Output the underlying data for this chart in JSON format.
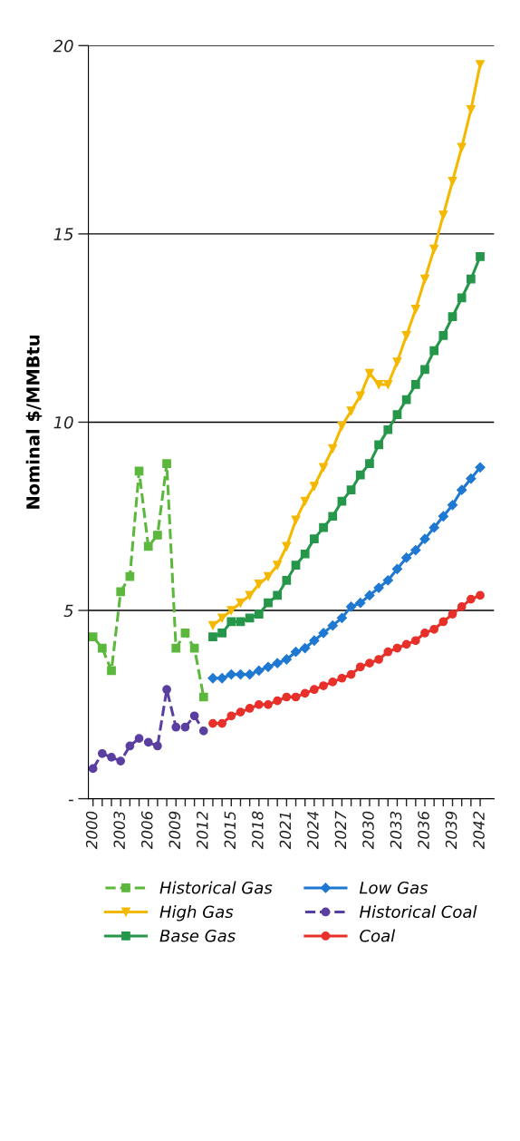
{
  "chart_data": {
    "type": "line",
    "ylabel": "Nominal $/MMBtu",
    "xlim": [
      1999.5,
      2043.5
    ],
    "xticks": [
      {
        "value": 2000,
        "label": "2000"
      },
      {
        "value": 2001,
        "label": null
      },
      {
        "value": 2002,
        "label": null
      },
      {
        "value": 2003,
        "label": "2003"
      },
      {
        "value": 2004,
        "label": null
      },
      {
        "value": 2005,
        "label": null
      },
      {
        "value": 2006,
        "label": "2006"
      },
      {
        "value": 2007,
        "label": null
      },
      {
        "value": 2008,
        "label": null
      },
      {
        "value": 2009,
        "label": "2009"
      },
      {
        "value": 2010,
        "label": null
      },
      {
        "value": 2011,
        "label": null
      },
      {
        "value": 2012,
        "label": "2012"
      },
      {
        "value": 2013,
        "label": null
      },
      {
        "value": 2014,
        "label": null
      },
      {
        "value": 2015,
        "label": "2015"
      },
      {
        "value": 2016,
        "label": null
      },
      {
        "value": 2017,
        "label": null
      },
      {
        "value": 2018,
        "label": "2018"
      },
      {
        "value": 2019,
        "label": null
      },
      {
        "value": 2020,
        "label": null
      },
      {
        "value": 2021,
        "label": "2021"
      },
      {
        "value": 2022,
        "label": null
      },
      {
        "value": 2023,
        "label": null
      },
      {
        "value": 2024,
        "label": "2024"
      },
      {
        "value": 2025,
        "label": null
      },
      {
        "value": 2026,
        "label": null
      },
      {
        "value": 2027,
        "label": "2027"
      },
      {
        "value": 2028,
        "label": null
      },
      {
        "value": 2029,
        "label": null
      },
      {
        "value": 2030,
        "label": "2030"
      },
      {
        "value": 2031,
        "label": null
      },
      {
        "value": 2032,
        "label": null
      },
      {
        "value": 2033,
        "label": "2033"
      },
      {
        "value": 2034,
        "label": null
      },
      {
        "value": 2035,
        "label": null
      },
      {
        "value": 2036,
        "label": "2036"
      },
      {
        "value": 2037,
        "label": null
      },
      {
        "value": 2038,
        "label": null
      },
      {
        "value": 2039,
        "label": "2039"
      },
      {
        "value": 2040,
        "label": null
      },
      {
        "value": 2041,
        "label": null
      },
      {
        "value": 2042,
        "label": "2042"
      }
    ],
    "ylim": [
      0,
      20
    ],
    "yticks": [
      {
        "value": 0,
        "label": "-"
      },
      5,
      10,
      15,
      20
    ],
    "grid": "y",
    "legend": "bottom",
    "series": [
      {
        "name": "Historical Gas",
        "color": "#5cb83c",
        "marker": "square",
        "line_style": "dashed",
        "x": [
          2000,
          2001,
          2002,
          2003,
          2004,
          2005,
          2006,
          2007,
          2008,
          2009,
          2010,
          2011,
          2012
        ],
        "values": [
          4.3,
          4.0,
          3.4,
          5.5,
          5.9,
          8.7,
          6.7,
          7.0,
          8.9,
          4.0,
          4.4,
          4.0,
          2.7
        ]
      },
      {
        "name": "High Gas",
        "color": "#f5b800",
        "marker": "triangle",
        "line_style": "solid",
        "x": [
          2013,
          2014,
          2015,
          2016,
          2017,
          2018,
          2019,
          2020,
          2021,
          2022,
          2023,
          2024,
          2025,
          2026,
          2027,
          2028,
          2029,
          2030,
          2031,
          2032,
          2033,
          2034,
          2035,
          2036,
          2037,
          2038,
          2039,
          2040,
          2041,
          2042
        ],
        "values": [
          4.6,
          4.8,
          5.0,
          5.2,
          5.4,
          5.7,
          5.9,
          6.2,
          6.7,
          7.4,
          7.9,
          8.3,
          8.8,
          9.3,
          9.9,
          10.3,
          10.7,
          11.3,
          11.0,
          11.0,
          11.6,
          12.3,
          13.0,
          13.8,
          14.6,
          15.5,
          16.4,
          17.3,
          18.3,
          19.5
        ]
      },
      {
        "name": "Base Gas",
        "color": "#25964a",
        "marker": "square",
        "line_style": "solid",
        "x": [
          2013,
          2014,
          2015,
          2016,
          2017,
          2018,
          2019,
          2020,
          2021,
          2022,
          2023,
          2024,
          2025,
          2026,
          2027,
          2028,
          2029,
          2030,
          2031,
          2032,
          2033,
          2034,
          2035,
          2036,
          2037,
          2038,
          2039,
          2040,
          2041,
          2042
        ],
        "values": [
          4.3,
          4.4,
          4.7,
          4.7,
          4.8,
          4.9,
          5.2,
          5.4,
          5.8,
          6.2,
          6.5,
          6.9,
          7.2,
          7.5,
          7.9,
          8.2,
          8.6,
          8.9,
          9.4,
          9.8,
          10.2,
          10.6,
          11.0,
          11.4,
          11.9,
          12.3,
          12.8,
          13.3,
          13.8,
          14.4
        ]
      },
      {
        "name": "Low Gas",
        "color": "#1f78d1",
        "marker": "diamond",
        "line_style": "solid",
        "x": [
          2013,
          2014,
          2015,
          2016,
          2017,
          2018,
          2019,
          2020,
          2021,
          2022,
          2023,
          2024,
          2025,
          2026,
          2027,
          2028,
          2029,
          2030,
          2031,
          2032,
          2033,
          2034,
          2035,
          2036,
          2037,
          2038,
          2039,
          2040,
          2041,
          2042
        ],
        "values": [
          3.2,
          3.2,
          3.3,
          3.3,
          3.3,
          3.4,
          3.5,
          3.6,
          3.7,
          3.9,
          4.0,
          4.2,
          4.4,
          4.6,
          4.8,
          5.1,
          5.2,
          5.4,
          5.6,
          5.8,
          6.1,
          6.4,
          6.6,
          6.9,
          7.2,
          7.5,
          7.8,
          8.2,
          8.5,
          8.8
        ]
      },
      {
        "name": "Historical Coal",
        "color": "#5a3fa0",
        "marker": "circle",
        "line_style": "dashed",
        "x": [
          2000,
          2001,
          2002,
          2003,
          2004,
          2005,
          2006,
          2007,
          2008,
          2009,
          2010,
          2011,
          2012
        ],
        "values": [
          0.8,
          1.2,
          1.1,
          1.0,
          1.4,
          1.6,
          1.5,
          1.4,
          2.9,
          1.9,
          1.9,
          2.2,
          1.8
        ]
      },
      {
        "name": "Coal",
        "color": "#e8302a",
        "marker": "circle",
        "line_style": "solid",
        "x": [
          2013,
          2014,
          2015,
          2016,
          2017,
          2018,
          2019,
          2020,
          2021,
          2022,
          2023,
          2024,
          2025,
          2026,
          2027,
          2028,
          2029,
          2030,
          2031,
          2032,
          2033,
          2034,
          2035,
          2036,
          2037,
          2038,
          2039,
          2040,
          2041,
          2042
        ],
        "values": [
          2.0,
          2.0,
          2.2,
          2.3,
          2.4,
          2.5,
          2.5,
          2.6,
          2.7,
          2.7,
          2.8,
          2.9,
          3.0,
          3.1,
          3.2,
          3.3,
          3.5,
          3.6,
          3.7,
          3.9,
          4.0,
          4.1,
          4.2,
          4.4,
          4.5,
          4.7,
          4.9,
          5.1,
          5.3,
          5.4
        ]
      }
    ]
  }
}
